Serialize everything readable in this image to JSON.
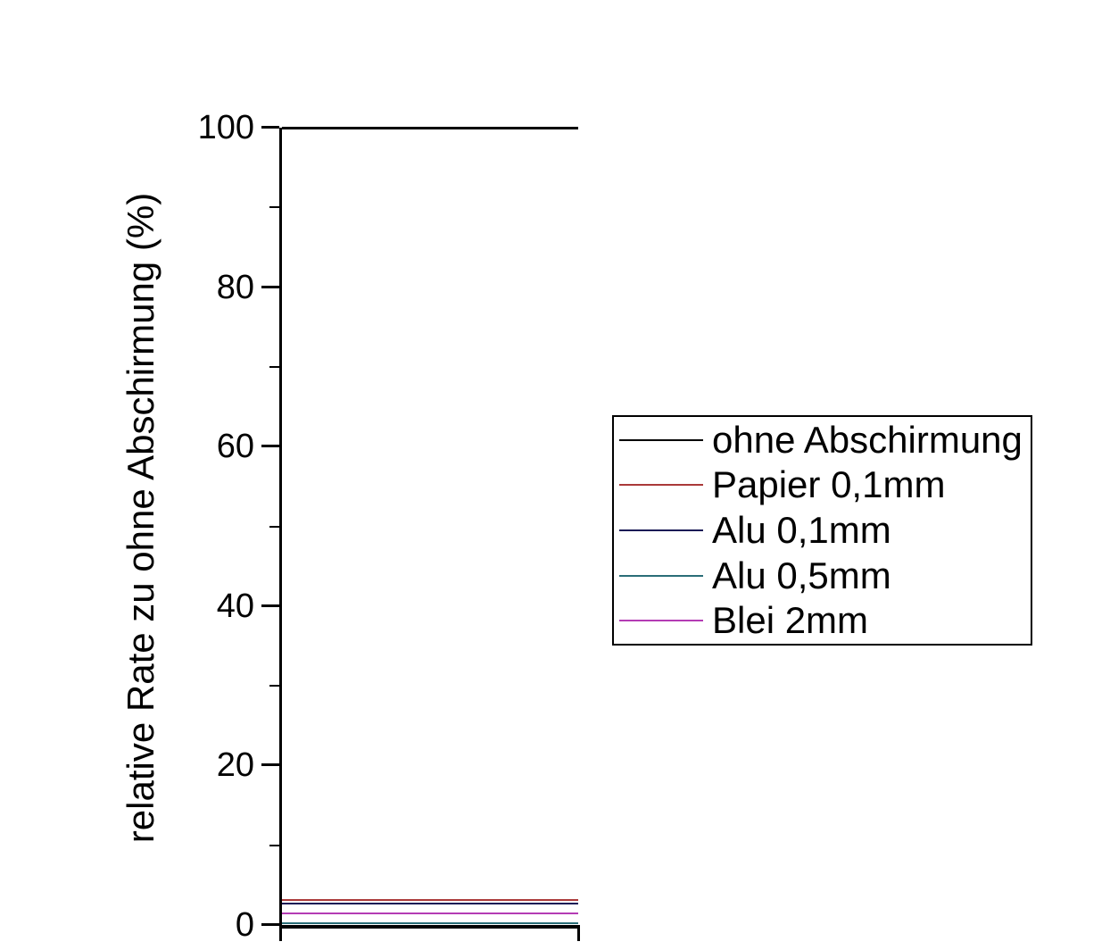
{
  "chart_data": {
    "type": "line",
    "title": "",
    "xlabel": "",
    "ylabel": "relative Rate zu ohne Abschirmung (%)",
    "ylim": [
      0,
      100
    ],
    "yticks_major": [
      0,
      20,
      40,
      60,
      80,
      100
    ],
    "yticks_minor": [
      10,
      30,
      50,
      70,
      90
    ],
    "grid": "off",
    "legend_position": "right-center",
    "series": [
      {
        "name": "ohne Abschirmung",
        "value_percent": 100,
        "color": "#000000",
        "shape": "horizontal-line"
      },
      {
        "name": "Papier 0,1mm",
        "value_percent": 3.1,
        "color": "#aa3939",
        "shape": "horizontal-line"
      },
      {
        "name": "Alu 0,1mm",
        "value_percent": 2.7,
        "color": "#191956",
        "shape": "horizontal-line"
      },
      {
        "name": "Alu 0,5mm",
        "value_percent": 0.2,
        "color": "#2a6e78",
        "shape": "horizontal-line"
      },
      {
        "name": "Blei 2mm",
        "value_percent": 1.4,
        "color": "#b43cb4",
        "shape": "horizontal-line"
      }
    ],
    "axis_color": "#000000",
    "background_color": "#ffffff"
  }
}
